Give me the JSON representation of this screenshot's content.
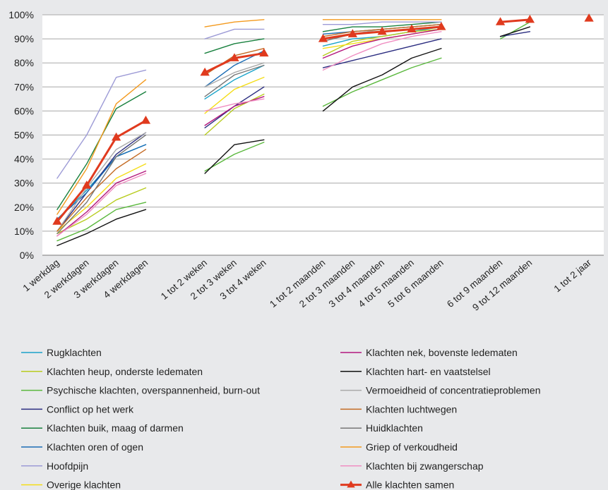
{
  "chart_data": {
    "type": "line",
    "title": "",
    "xlabel": "",
    "ylabel": "",
    "ylim": [
      0,
      100
    ],
    "y_ticks": [
      "0%",
      "10%",
      "20%",
      "30%",
      "40%",
      "50%",
      "60%",
      "70%",
      "80%",
      "90%",
      "100%"
    ],
    "grid": "horizontal",
    "legend_position": "bottom",
    "categories": [
      "1 werkdag",
      "2 werkdagen",
      "3 werkdagen",
      "4 werkdagen",
      "",
      "1 tot 2 weken",
      "2 tot 3 weken",
      "3 tot 4 weken",
      "",
      "1 tot 2 maanden",
      "2 tot 3 maanden",
      "3 tot 4 maanden",
      "4 tot 5 maanden",
      "5 tot 6 maanden",
      "",
      "6 tot 9 maanden",
      "9 tot 12 maanden",
      "",
      "1 tot 2 jaar"
    ],
    "series": [
      {
        "name": "Rugklachten",
        "color": "#1aa3c9",
        "values": [
          15,
          27,
          41,
          46,
          null,
          65,
          73,
          79,
          null,
          87,
          90,
          91,
          93,
          95,
          null,
          null,
          null,
          null,
          null
        ]
      },
      {
        "name": "Klachten heup, onderste ledematen",
        "color": "#b8cc1f",
        "values": [
          9,
          15,
          23,
          28,
          null,
          50,
          61,
          67,
          null,
          83,
          89,
          91,
          93,
          94,
          null,
          null,
          null,
          null,
          null
        ]
      },
      {
        "name": "Psychische klachten, overspannenheid, burn-out",
        "color": "#5ab83d",
        "values": [
          6,
          11,
          19,
          22,
          null,
          35,
          42,
          47,
          null,
          62,
          68,
          73,
          78,
          82,
          null,
          90,
          97,
          null,
          null
        ]
      },
      {
        "name": "Conflict op het werk",
        "color": "#2b2d80",
        "values": [
          10,
          26,
          42,
          51,
          null,
          53,
          62,
          70,
          null,
          78,
          81,
          84,
          87,
          90,
          null,
          91,
          93,
          null,
          null
        ]
      },
      {
        "name": "Klachten buik, maag of darmen",
        "color": "#18803e",
        "values": [
          19,
          38,
          61,
          68,
          null,
          84,
          88,
          90,
          null,
          93,
          95,
          95,
          96,
          97,
          null,
          null,
          null,
          null,
          null
        ]
      },
      {
        "name": "Klachten oren of ogen",
        "color": "#1a6cb5",
        "values": [
          15,
          26,
          41,
          46,
          null,
          70,
          79,
          85,
          null,
          92,
          93,
          94,
          95,
          96,
          null,
          null,
          null,
          null,
          null
        ]
      },
      {
        "name": "Hoofdpijn",
        "color": "#9d9bd6",
        "values": [
          32,
          50,
          74,
          77,
          null,
          90,
          94,
          94,
          null,
          96,
          96,
          97,
          97,
          97,
          null,
          null,
          null,
          null,
          null
        ]
      },
      {
        "name": "Overige klachten",
        "color": "#f4dd1a",
        "values": [
          10,
          20,
          32,
          38,
          null,
          59,
          69,
          74,
          null,
          86,
          88,
          90,
          92,
          94,
          null,
          null,
          null,
          null,
          null
        ]
      },
      {
        "name": "Klachten nek, bovenste ledematen",
        "color": "#b3177e",
        "values": [
          8,
          18,
          30,
          35,
          null,
          54,
          62,
          66,
          null,
          82,
          87,
          90,
          92,
          94,
          null,
          null,
          null,
          null,
          null
        ]
      },
      {
        "name": "Klachten hart- en vaatstelsel",
        "color": "#111111",
        "values": [
          4,
          9,
          15,
          19,
          null,
          34,
          46,
          48,
          null,
          60,
          70,
          75,
          82,
          86,
          null,
          91,
          95,
          null,
          null
        ]
      },
      {
        "name": "Vermoeidheid of concentratieproblemen",
        "color": "#aaaaaa",
        "values": [
          10,
          28,
          44,
          51,
          null,
          70,
          76,
          80,
          null,
          90,
          92,
          94,
          95,
          96,
          null,
          null,
          null,
          null,
          null
        ]
      },
      {
        "name": "Klachten luchtwegen",
        "color": "#c46b24",
        "values": [
          10,
          24,
          36,
          44,
          null,
          75,
          83,
          86,
          null,
          91,
          93,
          94,
          95,
          96,
          null,
          null,
          null,
          null,
          null
        ]
      },
      {
        "name": "Huidklachten",
        "color": "#777777",
        "values": [
          9,
          22,
          41,
          50,
          null,
          66,
          75,
          79,
          null,
          89,
          92,
          93,
          94,
          95,
          null,
          null,
          null,
          null,
          null
        ]
      },
      {
        "name": "Griep of verkoudheid",
        "color": "#f39a1e",
        "values": [
          17,
          36,
          63,
          73,
          null,
          95,
          97,
          98,
          null,
          98,
          98,
          98,
          98,
          98,
          null,
          null,
          null,
          null,
          null
        ]
      },
      {
        "name": "Klachten bij zwangerschap",
        "color": "#f08fc2",
        "values": [
          8,
          17,
          29,
          34,
          null,
          60,
          63,
          65,
          null,
          77,
          83,
          88,
          91,
          93,
          null,
          null,
          null,
          null,
          null
        ]
      },
      {
        "name": "Alle klachten samen",
        "color": "#e03a1e",
        "values": [
          14,
          29,
          49,
          56,
          null,
          76,
          82,
          84,
          null,
          90,
          92,
          93,
          94,
          95,
          null,
          97,
          98,
          null,
          98.5
        ],
        "marker": "triangle"
      }
    ],
    "legend_order": [
      "Rugklachten",
      "Klachten nek, bovenste ledematen",
      "Klachten heup, onderste ledematen",
      "Klachten hart- en vaatstelsel",
      "Psychische klachten, overspannenheid, burn-out",
      "Vermoeidheid of concentratieproblemen",
      "Conflict op het werk",
      "Klachten luchtwegen",
      "Klachten buik, maag of darmen",
      "Huidklachten",
      "Klachten oren of ogen",
      "Griep of verkoudheid",
      "Hoofdpijn",
      "Klachten bij zwangerschap",
      "Overige klachten",
      "Alle klachten samen"
    ]
  }
}
